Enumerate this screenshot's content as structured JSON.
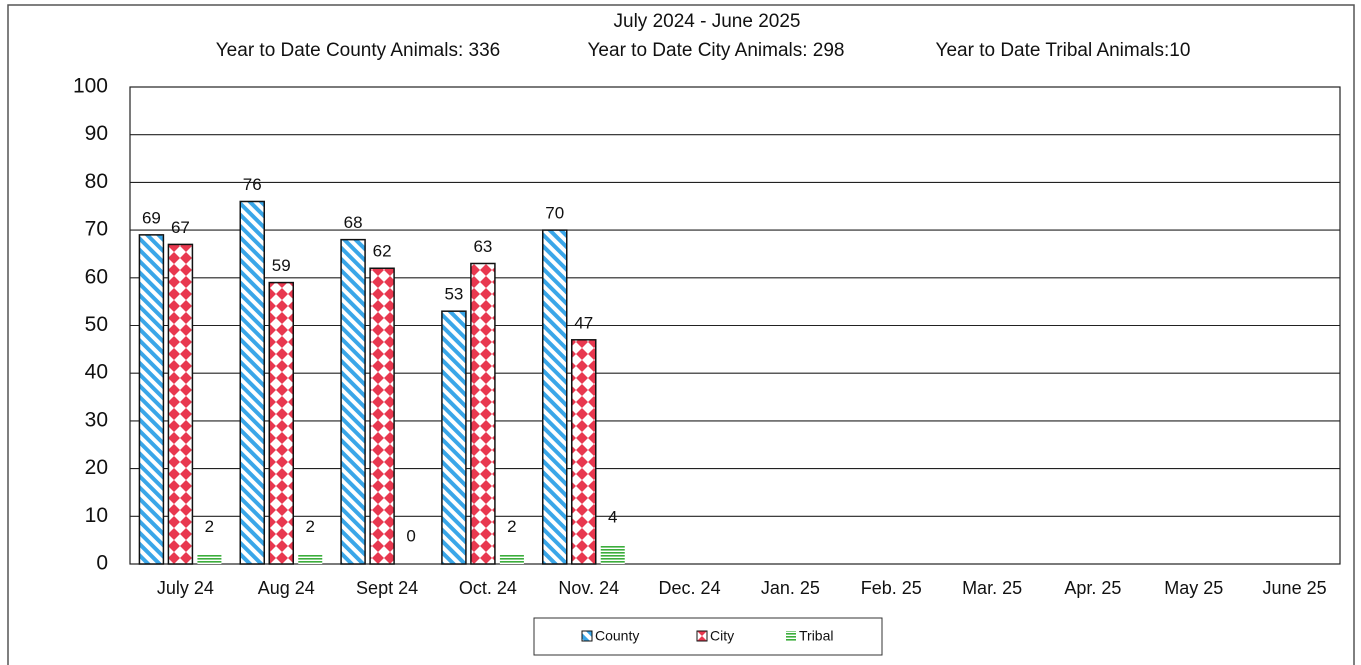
{
  "chart_data": {
    "type": "bar",
    "title": "July 2024 - June 2025",
    "subtitle": [
      "Year to Date County Animals: 336",
      "Year to Date City Animals: 298",
      "Year to Date Tribal Animals:10"
    ],
    "categories": [
      "July 24",
      "Aug 24",
      "Sept 24",
      "Oct. 24",
      "Nov. 24",
      "Dec. 24",
      "Jan. 25",
      "Feb. 25",
      "Mar. 25",
      "Apr. 25",
      "May 25",
      "June 25"
    ],
    "series": [
      {
        "name": "County",
        "color": "#3aa6e8",
        "pattern": "diagonal",
        "values": [
          69,
          76,
          68,
          53,
          70,
          null,
          null,
          null,
          null,
          null,
          null,
          null
        ]
      },
      {
        "name": "City",
        "color": "#e8384f",
        "pattern": "diamond",
        "values": [
          67,
          59,
          62,
          63,
          47,
          null,
          null,
          null,
          null,
          null,
          null,
          null
        ]
      },
      {
        "name": "Tribal",
        "color": "#3cae3c",
        "pattern": "horizontal",
        "values": [
          2,
          2,
          0,
          2,
          4,
          null,
          null,
          null,
          null,
          null,
          null,
          null
        ]
      }
    ],
    "ylim": [
      0,
      100
    ],
    "yticks": [
      0,
      10,
      20,
      30,
      40,
      50,
      60,
      70,
      80,
      90,
      100
    ],
    "grid": true,
    "legend": "bottom"
  }
}
